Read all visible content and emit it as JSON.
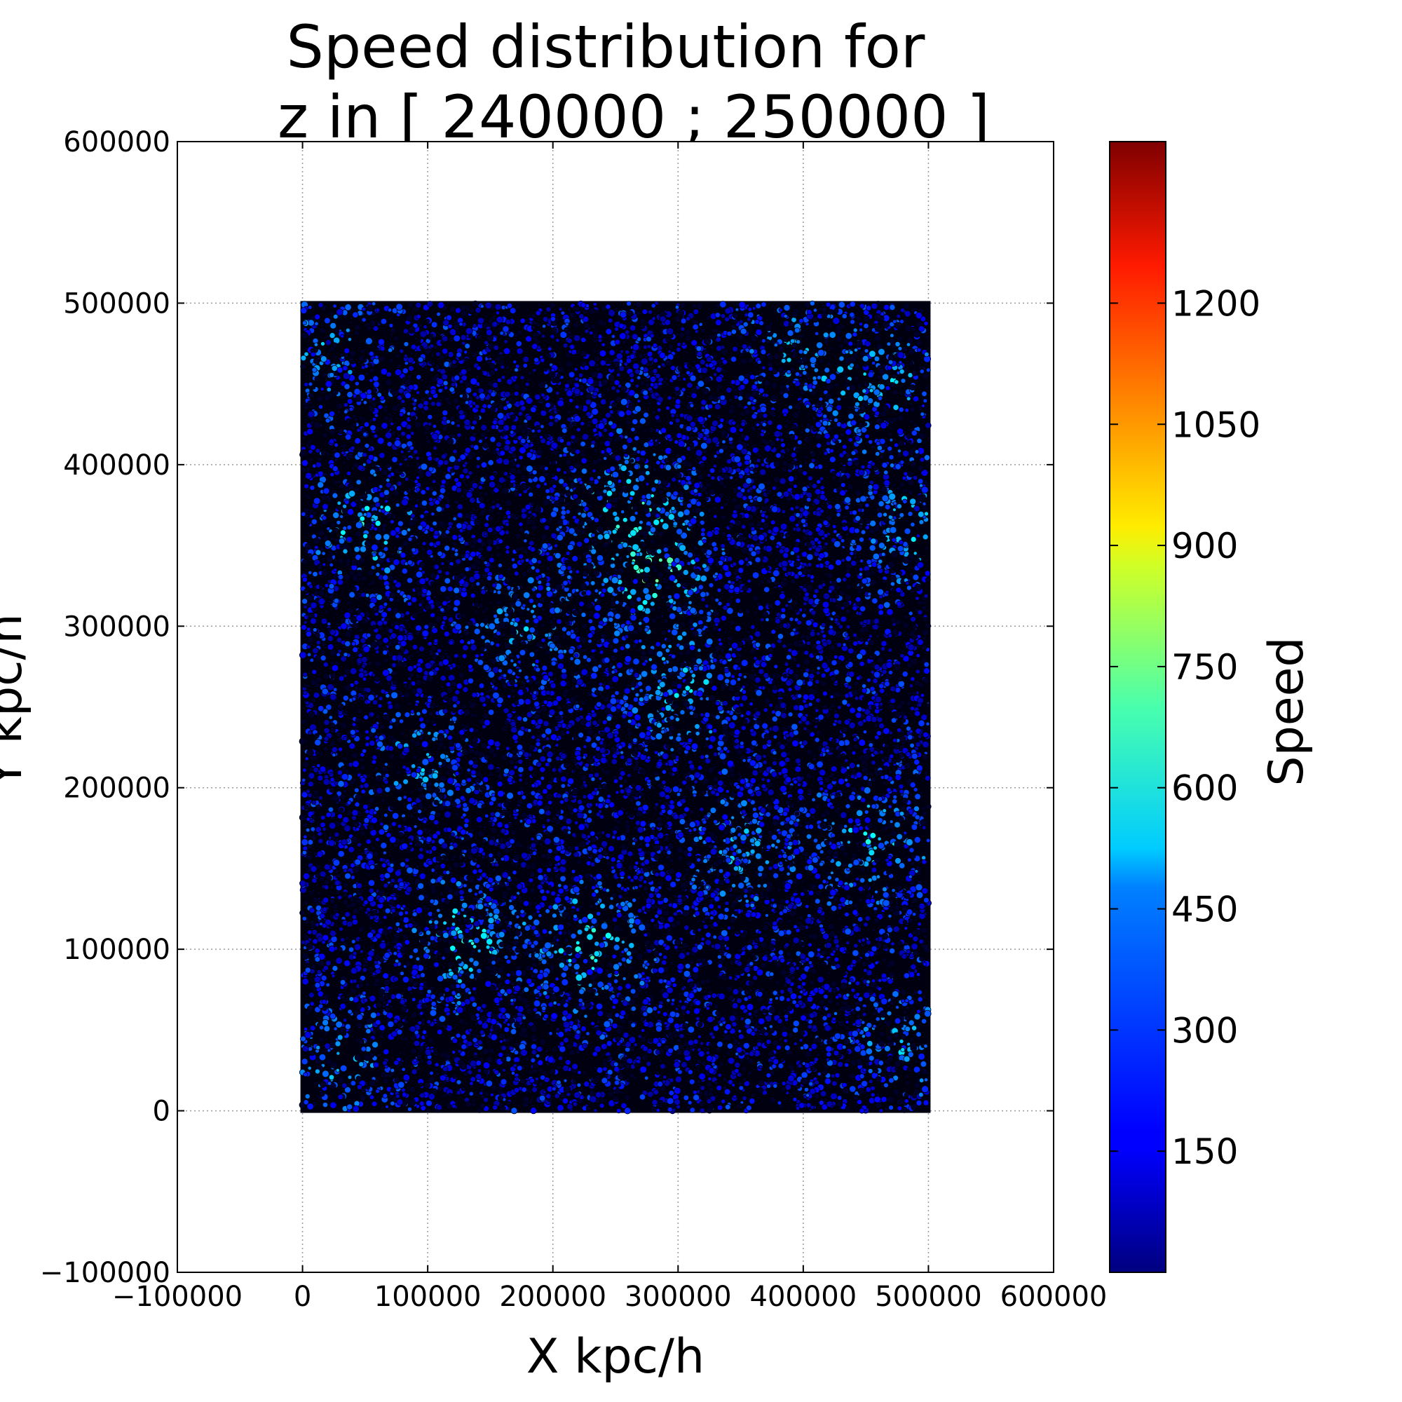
{
  "chart_data": {
    "type": "scatter",
    "title_line1": "Speed distribution for",
    "title_line2": "z in [ 240000 ; 250000 ]",
    "xlabel": "X kpc/h",
    "ylabel": "Y kpc/h",
    "xlim": [
      -100000,
      600000
    ],
    "ylim": [
      -100000,
      600000
    ],
    "x_ticks": [
      -100000,
      0,
      100000,
      200000,
      300000,
      400000,
      500000,
      600000
    ],
    "y_ticks": [
      -100000,
      0,
      100000,
      200000,
      300000,
      400000,
      500000,
      600000
    ],
    "x_tick_labels": [
      "−100000",
      "0",
      "100000",
      "200000",
      "300000",
      "400000",
      "500000",
      "600000"
    ],
    "y_tick_labels": [
      "−100000",
      "0",
      "100000",
      "200000",
      "300000",
      "400000",
      "500000",
      "600000"
    ],
    "grid": true,
    "point_extent": {
      "x": [
        0,
        500000
      ],
      "y": [
        0,
        500000
      ]
    },
    "colormap": "jet",
    "colorbar": {
      "label": "Speed",
      "range": [
        0,
        1400
      ],
      "ticks": [
        150,
        300,
        450,
        600,
        750,
        900,
        1050,
        1200
      ],
      "tick_labels": [
        "150",
        "300",
        "450",
        "600",
        "750",
        "900",
        "1050",
        "1200"
      ]
    },
    "dominant_speed_range": [
      50,
      300
    ],
    "high_speed_regions": [
      {
        "x": 280000,
        "y": 335000,
        "speed": 750
      },
      {
        "x": 260000,
        "y": 375000,
        "speed": 650
      },
      {
        "x": 50000,
        "y": 360000,
        "speed": 600
      },
      {
        "x": 455000,
        "y": 165000,
        "speed": 600
      },
      {
        "x": 230000,
        "y": 100000,
        "speed": 650
      },
      {
        "x": 130000,
        "y": 105000,
        "speed": 600
      },
      {
        "x": 460000,
        "y": 450000,
        "speed": 550
      },
      {
        "x": 30000,
        "y": 30000,
        "speed": 500
      },
      {
        "x": 100000,
        "y": 215000,
        "speed": 500
      },
      {
        "x": 300000,
        "y": 260000,
        "speed": 550
      },
      {
        "x": 400000,
        "y": 470000,
        "speed": 500
      },
      {
        "x": 490000,
        "y": 360000,
        "speed": 550
      },
      {
        "x": 180000,
        "y": 300000,
        "speed": 500
      },
      {
        "x": 350000,
        "y": 160000,
        "speed": 500
      },
      {
        "x": 20000,
        "y": 470000,
        "speed": 500
      },
      {
        "x": 480000,
        "y": 40000,
        "speed": 500
      }
    ]
  }
}
